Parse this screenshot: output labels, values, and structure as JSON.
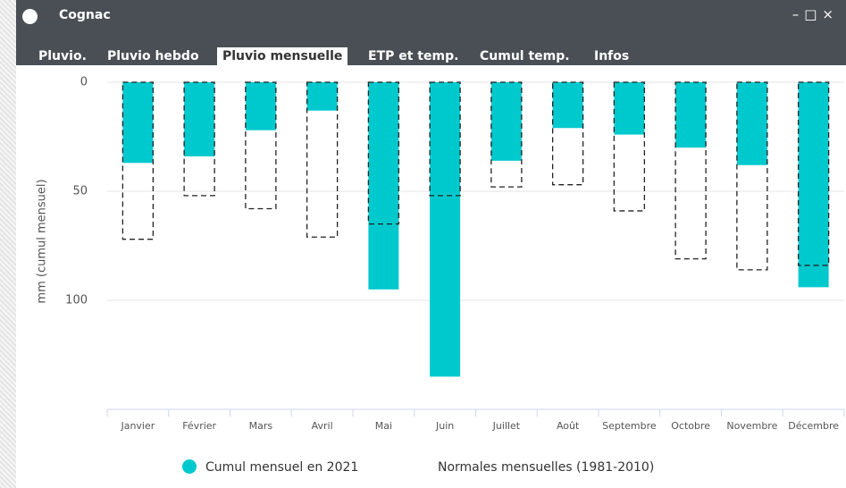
{
  "window": {
    "title": "Cognac"
  },
  "tabs": [
    "Pluvio.",
    "Pluvio hebdo",
    "Pluvio mensuelle",
    "ETP et temp.",
    "Cumul temp.",
    "Infos"
  ],
  "active_tab": 2,
  "chart_data": {
    "type": "bar",
    "y_label": "mm (cumul mensuel)",
    "categories": [
      "Janvier",
      "Février",
      "Mars",
      "Avril",
      "Mai",
      "Juin",
      "Juillet",
      "Août",
      "Septembre",
      "Octobre",
      "Novembre",
      "Décembre"
    ],
    "series": [
      {
        "name": "Cumul mensuel en 2021",
        "color": "#00c9cd",
        "style": "filled",
        "values": [
          37,
          34,
          22,
          13,
          95,
          135,
          36,
          21,
          24,
          30,
          38,
          94
        ]
      },
      {
        "name": "Normales mensuelles (1981-2010)",
        "color": "#222222",
        "style": "dashed-outline",
        "values": [
          72,
          52,
          58,
          71,
          65,
          52,
          48,
          47,
          59,
          81,
          86,
          84
        ]
      }
    ],
    "ylim": [
      0,
      150
    ],
    "y_inverted": true,
    "yticks": [
      0,
      50,
      100
    ],
    "grid": true
  }
}
